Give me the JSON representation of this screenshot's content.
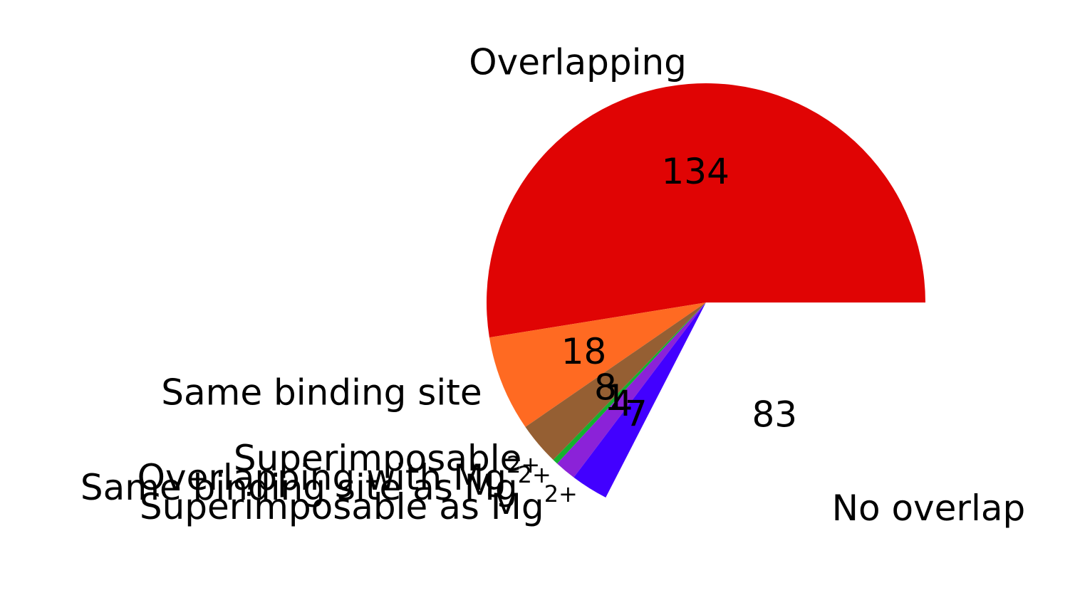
{
  "chart_data": {
    "type": "pie",
    "title": "",
    "start_angle_deg": 0,
    "direction": "counterclockwise",
    "slices": [
      {
        "label": "Overlapping",
        "label_sup": "",
        "value": 134,
        "value_label": "134",
        "color": "#e00404"
      },
      {
        "label": "Same binding site",
        "label_sup": "",
        "value": 18,
        "value_label": "18",
        "color": "#ff6a22"
      },
      {
        "label": "Superimposable",
        "label_sup": "",
        "value": 8,
        "value_label": "8",
        "color": "#955f33"
      },
      {
        "label": "Overlapping with Mg",
        "label_sup": "2+",
        "value": 1,
        "value_label": "1",
        "color": "#15b02e"
      },
      {
        "label": "Same binding site as Mg",
        "label_sup": "2+",
        "value": 4,
        "value_label": "4",
        "color": "#8b22d8"
      },
      {
        "label": "Superimposable as Mg",
        "label_sup": "2+",
        "value": 7,
        "value_label": "7",
        "color": "#4200ff"
      },
      {
        "label": "No overlap",
        "label_sup": "",
        "value": 83,
        "value_label": "83",
        "color": "#ffffff"
      }
    ]
  }
}
